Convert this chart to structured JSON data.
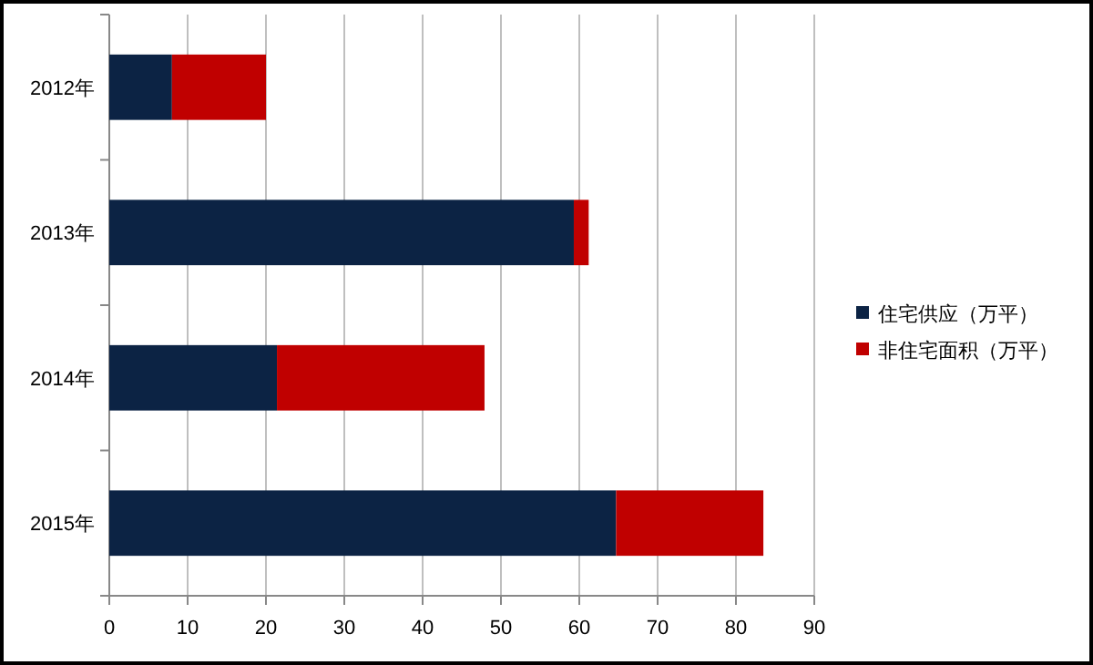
{
  "chart_data": {
    "type": "bar",
    "orientation": "horizontal",
    "stacked": true,
    "categories": [
      "2012年",
      "2013年",
      "2014年",
      "2015年"
    ],
    "series": [
      {
        "name": "住宅供应（万平）",
        "color": "#0c2344",
        "values": [
          8,
          59.3,
          21.4,
          64.7
        ]
      },
      {
        "name": "非住宅面积（万平）",
        "color": "#c00000",
        "values": [
          12,
          1.9,
          26.5,
          18.8
        ]
      }
    ],
    "xlim": [
      0,
      90
    ],
    "xticks": [
      0,
      10,
      20,
      30,
      40,
      50,
      60,
      70,
      80,
      90
    ],
    "grid": "x",
    "legend": "right"
  }
}
